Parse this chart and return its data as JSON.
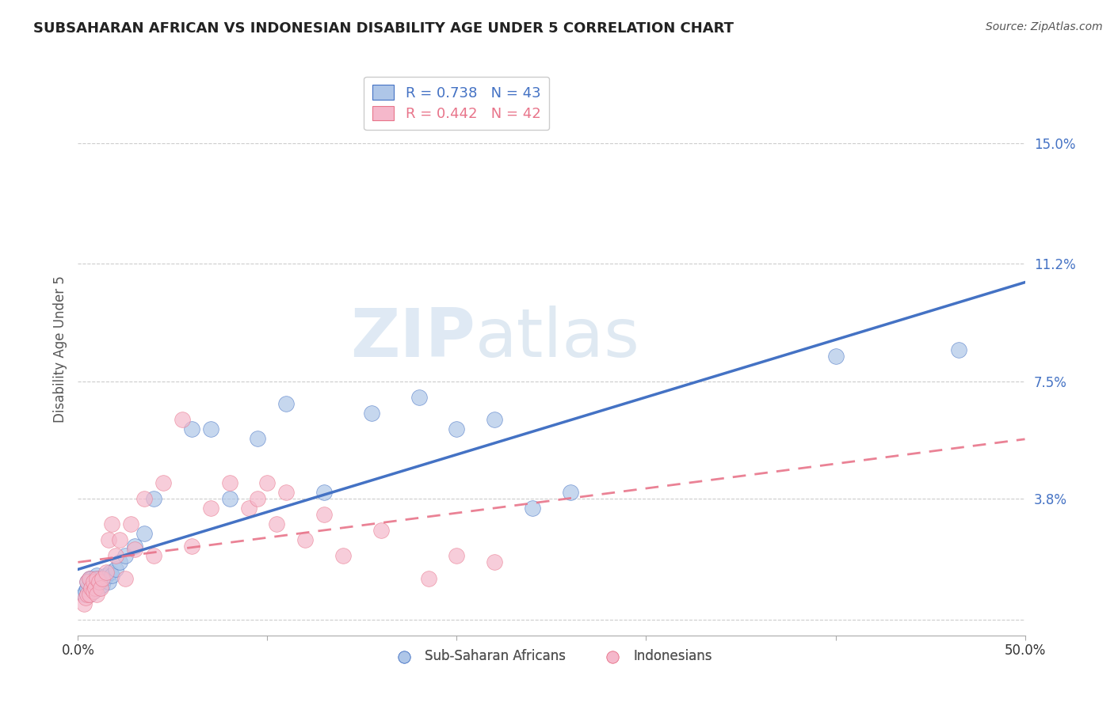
{
  "title": "SUBSAHARAN AFRICAN VS INDONESIAN DISABILITY AGE UNDER 5 CORRELATION CHART",
  "source": "Source: ZipAtlas.com",
  "ylabel": "Disability Age Under 5",
  "xlim": [
    0.0,
    0.5
  ],
  "ylim": [
    -0.005,
    0.175
  ],
  "yticks": [
    0.0,
    0.038,
    0.075,
    0.112,
    0.15
  ],
  "ytick_labels": [
    "",
    "3.8%",
    "7.5%",
    "11.2%",
    "15.0%"
  ],
  "xticks": [
    0.0,
    0.1,
    0.2,
    0.3,
    0.4,
    0.5
  ],
  "xtick_labels": [
    "0.0%",
    "",
    "",
    "",
    "",
    "50.0%"
  ],
  "blue_R": 0.738,
  "blue_N": 43,
  "pink_R": 0.442,
  "pink_N": 42,
  "blue_color": "#aec6e8",
  "pink_color": "#f5b8cb",
  "blue_line_color": "#4472c4",
  "pink_line_color": "#e8748a",
  "watermark_zip": "ZIP",
  "watermark_atlas": "atlas",
  "background_color": "#ffffff",
  "blue_scatter_x": [
    0.003,
    0.004,
    0.005,
    0.005,
    0.006,
    0.006,
    0.007,
    0.007,
    0.008,
    0.008,
    0.009,
    0.009,
    0.01,
    0.01,
    0.011,
    0.011,
    0.012,
    0.013,
    0.014,
    0.015,
    0.016,
    0.017,
    0.018,
    0.02,
    0.022,
    0.025,
    0.03,
    0.035,
    0.04,
    0.06,
    0.07,
    0.08,
    0.095,
    0.11,
    0.13,
    0.155,
    0.18,
    0.2,
    0.22,
    0.24,
    0.26,
    0.4,
    0.465
  ],
  "blue_scatter_y": [
    0.008,
    0.009,
    0.01,
    0.012,
    0.008,
    0.013,
    0.01,
    0.013,
    0.009,
    0.012,
    0.01,
    0.013,
    0.011,
    0.014,
    0.01,
    0.013,
    0.012,
    0.011,
    0.013,
    0.014,
    0.012,
    0.015,
    0.014,
    0.016,
    0.018,
    0.02,
    0.023,
    0.027,
    0.038,
    0.06,
    0.06,
    0.038,
    0.057,
    0.068,
    0.04,
    0.065,
    0.07,
    0.06,
    0.063,
    0.035,
    0.04,
    0.083,
    0.085
  ],
  "pink_scatter_x": [
    0.003,
    0.004,
    0.005,
    0.005,
    0.006,
    0.006,
    0.007,
    0.008,
    0.008,
    0.009,
    0.01,
    0.01,
    0.011,
    0.012,
    0.013,
    0.015,
    0.016,
    0.018,
    0.02,
    0.022,
    0.025,
    0.028,
    0.03,
    0.035,
    0.04,
    0.045,
    0.055,
    0.06,
    0.07,
    0.08,
    0.09,
    0.095,
    0.1,
    0.105,
    0.11,
    0.12,
    0.13,
    0.14,
    0.16,
    0.185,
    0.2,
    0.22
  ],
  "pink_scatter_y": [
    0.005,
    0.007,
    0.008,
    0.012,
    0.008,
    0.013,
    0.01,
    0.009,
    0.012,
    0.01,
    0.013,
    0.008,
    0.012,
    0.01,
    0.013,
    0.015,
    0.025,
    0.03,
    0.02,
    0.025,
    0.013,
    0.03,
    0.022,
    0.038,
    0.02,
    0.043,
    0.063,
    0.023,
    0.035,
    0.043,
    0.035,
    0.038,
    0.043,
    0.03,
    0.04,
    0.025,
    0.033,
    0.02,
    0.028,
    0.013,
    0.02,
    0.018
  ]
}
